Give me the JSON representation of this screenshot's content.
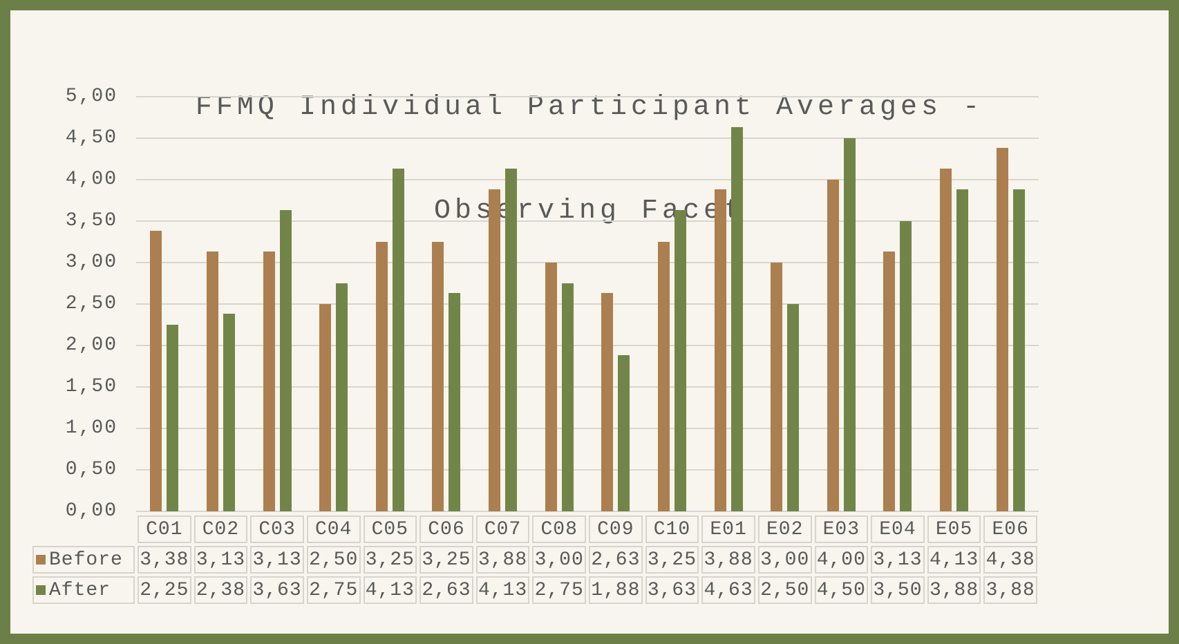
{
  "title": {
    "line1": "FFMQ Individual Participant Averages -",
    "line2": "Observing Facet"
  },
  "chart_data": {
    "type": "bar",
    "title": "FFMQ Individual Participant Averages - Observing Facet",
    "title_lines": [
      "FFMQ Individual Participant Averages -",
      "Observing Facet"
    ],
    "categories": [
      "C01",
      "C02",
      "C03",
      "C04",
      "C05",
      "C06",
      "C07",
      "C08",
      "C09",
      "C10",
      "E01",
      "E02",
      "E03",
      "E04",
      "E05",
      "E06"
    ],
    "series": [
      {
        "name": "Before",
        "values": [
          3.38,
          3.13,
          3.13,
          2.5,
          3.25,
          3.25,
          3.88,
          3.0,
          2.63,
          3.25,
          3.88,
          3.0,
          4.0,
          3.13,
          4.13,
          4.38
        ]
      },
      {
        "name": "After",
        "values": [
          2.25,
          2.38,
          3.63,
          2.75,
          4.13,
          2.63,
          4.13,
          2.75,
          1.88,
          3.63,
          4.63,
          2.5,
          4.5,
          3.5,
          3.88,
          3.88
        ]
      }
    ],
    "series_colors": [
      "#ab7f50",
      "#718549"
    ],
    "xlabel": "",
    "ylabel": "",
    "ylim": [
      0,
      5
    ],
    "ytick_step": 0.5,
    "ytick_labels": [
      "0,00",
      "0,50",
      "1,00",
      "1,50",
      "2,00",
      "2,50",
      "3,00",
      "3,50",
      "4,00",
      "4,50",
      "5,00"
    ],
    "decimal_separator": ",",
    "grid": true,
    "legend_position": "data-table-left"
  },
  "colors": {
    "frame": "#6d7f48",
    "background": "#f7f5ed",
    "gridline": "#d8d6cf",
    "text": "#595959",
    "table_border": "#d6d4cd",
    "before_bar": "#ab7f50",
    "after_bar": "#718549"
  }
}
